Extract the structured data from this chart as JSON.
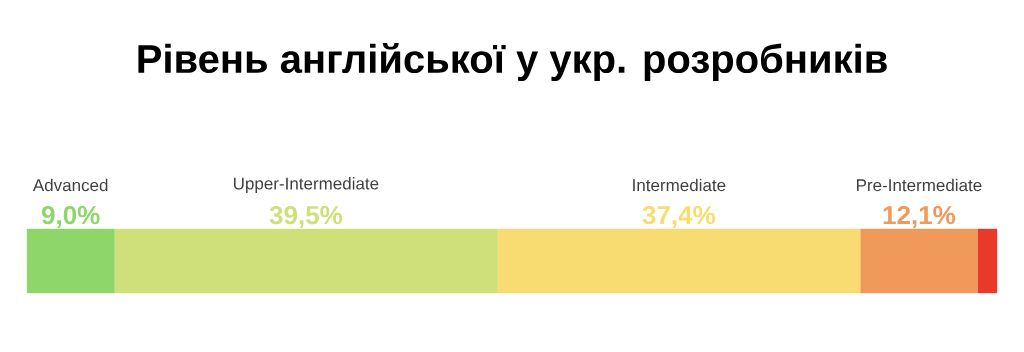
{
  "chart_data": {
    "type": "bar",
    "title": "Рівень англійської у укр. розробників",
    "orientation": "horizontal",
    "stacked": true,
    "categories": [
      null
    ],
    "tick_labels": false,
    "series": [
      {
        "name": "Advanced",
        "color": "#8fd66a",
        "values": [
          9.0
        ],
        "value_labels": [
          "9,0%"
        ]
      },
      {
        "name": "Upper-Intermediate",
        "color": "#cfe07a",
        "values": [
          39.5
        ],
        "value_labels": [
          "39,5%"
        ]
      },
      {
        "name": "Intermediate",
        "color": "#f8dc72",
        "values": [
          37.4
        ],
        "value_labels": [
          "37,4%"
        ]
      },
      {
        "name": "Pre-Intermediate",
        "color": "#f0995a",
        "values": [
          12.1
        ],
        "value_labels": [
          "12,1%"
        ]
      },
      {
        "color": "#e8392b",
        "values": [
          2.0
        ]
      }
    ]
  }
}
